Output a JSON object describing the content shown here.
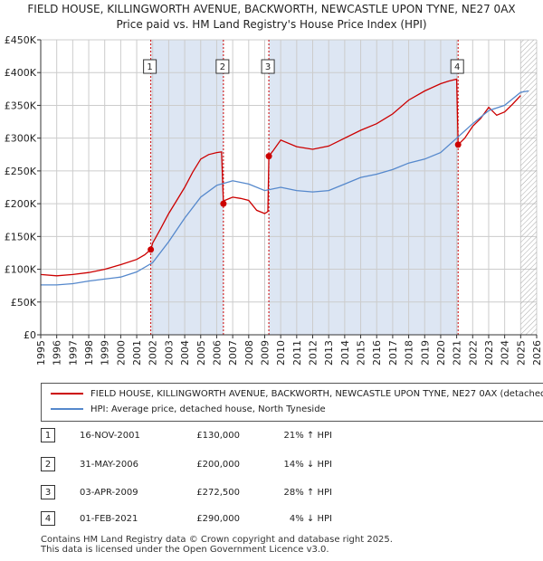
{
  "title": "FIELD HOUSE, KILLINGWORTH AVENUE, BACKWORTH, NEWCASTLE UPON TYNE, NE27 0AX",
  "subtitle": "Price paid vs. HM Land Registry's House Price Index (HPI)",
  "colors": {
    "property": "#cc0000",
    "hpi": "#5588cc",
    "shade": "#dde6f3",
    "grid": "#cccccc",
    "marker": "#cc0000"
  },
  "chart_data": {
    "type": "line",
    "xlim": [
      1995,
      2026
    ],
    "ylim": [
      0,
      450000
    ],
    "x_ticks": [
      1995,
      1996,
      1997,
      1998,
      1999,
      2000,
      2001,
      2002,
      2003,
      2004,
      2005,
      2006,
      2007,
      2008,
      2009,
      2010,
      2011,
      2012,
      2013,
      2014,
      2015,
      2016,
      2017,
      2018,
      2019,
      2020,
      2021,
      2022,
      2023,
      2024,
      2025,
      2026
    ],
    "y_ticks": [
      0,
      50000,
      100000,
      150000,
      200000,
      250000,
      300000,
      350000,
      400000,
      450000
    ],
    "y_tick_labels": [
      "£0",
      "£50K",
      "£100K",
      "£150K",
      "£200K",
      "£250K",
      "£300K",
      "£350K",
      "£400K",
      "£450K"
    ],
    "grid": true,
    "hatched_after": 2025.0,
    "series": [
      {
        "name": "FIELD HOUSE, KILLINGWORTH AVENUE, BACKWORTH, NEWCASTLE UPON TYNE, NE27 0AX (detached house)",
        "x": [
          1995,
          1996,
          1997,
          1998,
          1999,
          2000,
          2001,
          2001.5,
          2001.88,
          2002,
          2002.5,
          2003,
          2003.5,
          2004,
          2004.5,
          2005,
          2005.5,
          2006,
          2006.3,
          2006.42,
          2006.5,
          2007,
          2007.5,
          2008,
          2008.5,
          2009,
          2009.2,
          2009.26,
          2009.5,
          2010,
          2011,
          2012,
          2013,
          2014,
          2015,
          2016,
          2017,
          2018,
          2019,
          2020,
          2020.5,
          2021.0,
          2021.09,
          2021.5,
          2022,
          2022.5,
          2023,
          2023.5,
          2024,
          2024.5,
          2025
        ],
        "y": [
          92000,
          90000,
          92000,
          95000,
          100000,
          107000,
          115000,
          122000,
          130000,
          140000,
          162000,
          185000,
          205000,
          225000,
          248000,
          268000,
          275000,
          278000,
          279000,
          200000,
          205000,
          210000,
          208000,
          205000,
          190000,
          185000,
          188000,
          272500,
          280000,
          297000,
          287000,
          283000,
          288000,
          300000,
          312000,
          322000,
          337000,
          358000,
          372000,
          383000,
          387000,
          390000,
          290000,
          300000,
          318000,
          330000,
          347000,
          335000,
          340000,
          352000,
          365000
        ]
      },
      {
        "name": "HPI: Average price, detached house, North Tyneside",
        "x": [
          1995,
          1996,
          1997,
          1998,
          1999,
          2000,
          2001,
          2002,
          2003,
          2004,
          2005,
          2006,
          2007,
          2008,
          2009,
          2010,
          2011,
          2012,
          2013,
          2014,
          2015,
          2016,
          2017,
          2018,
          2019,
          2020,
          2021,
          2022,
          2023,
          2024,
          2025,
          2025.5
        ],
        "y": [
          76000,
          76000,
          78000,
          82000,
          85000,
          88000,
          96000,
          110000,
          142000,
          178000,
          210000,
          228000,
          235000,
          230000,
          220000,
          225000,
          220000,
          218000,
          220000,
          230000,
          240000,
          245000,
          252000,
          262000,
          268000,
          278000,
          300000,
          322000,
          342000,
          350000,
          370000,
          372000
        ]
      }
    ],
    "sales": [
      {
        "label": "1",
        "x": 2001.88,
        "date": "16-NOV-2001",
        "price": 130000,
        "price_text": "£130,000",
        "hpi_text": "21% ↑ HPI"
      },
      {
        "label": "2",
        "x": 2006.42,
        "date": "31-MAY-2006",
        "price": 200000,
        "price_text": "£200,000",
        "hpi_text": "14% ↓ HPI"
      },
      {
        "label": "3",
        "x": 2009.26,
        "date": "03-APR-2009",
        "price": 272500,
        "price_text": "£272,500",
        "hpi_text": "28% ↑ HPI"
      },
      {
        "label": "4",
        "x": 2021.09,
        "date": "01-FEB-2021",
        "price": 290000,
        "price_text": "£290,000",
        "hpi_text": "4% ↓ HPI"
      }
    ]
  },
  "legend": {
    "property_label": "FIELD HOUSE, KILLINGWORTH AVENUE, BACKWORTH, NEWCASTLE UPON TYNE, NE27 0AX (detached house)",
    "hpi_label": "HPI: Average price, detached house, North Tyneside"
  },
  "footer": {
    "line1": "Contains HM Land Registry data © Crown copyright and database right 2025.",
    "line2": "This data is licensed under the Open Government Licence v3.0."
  }
}
